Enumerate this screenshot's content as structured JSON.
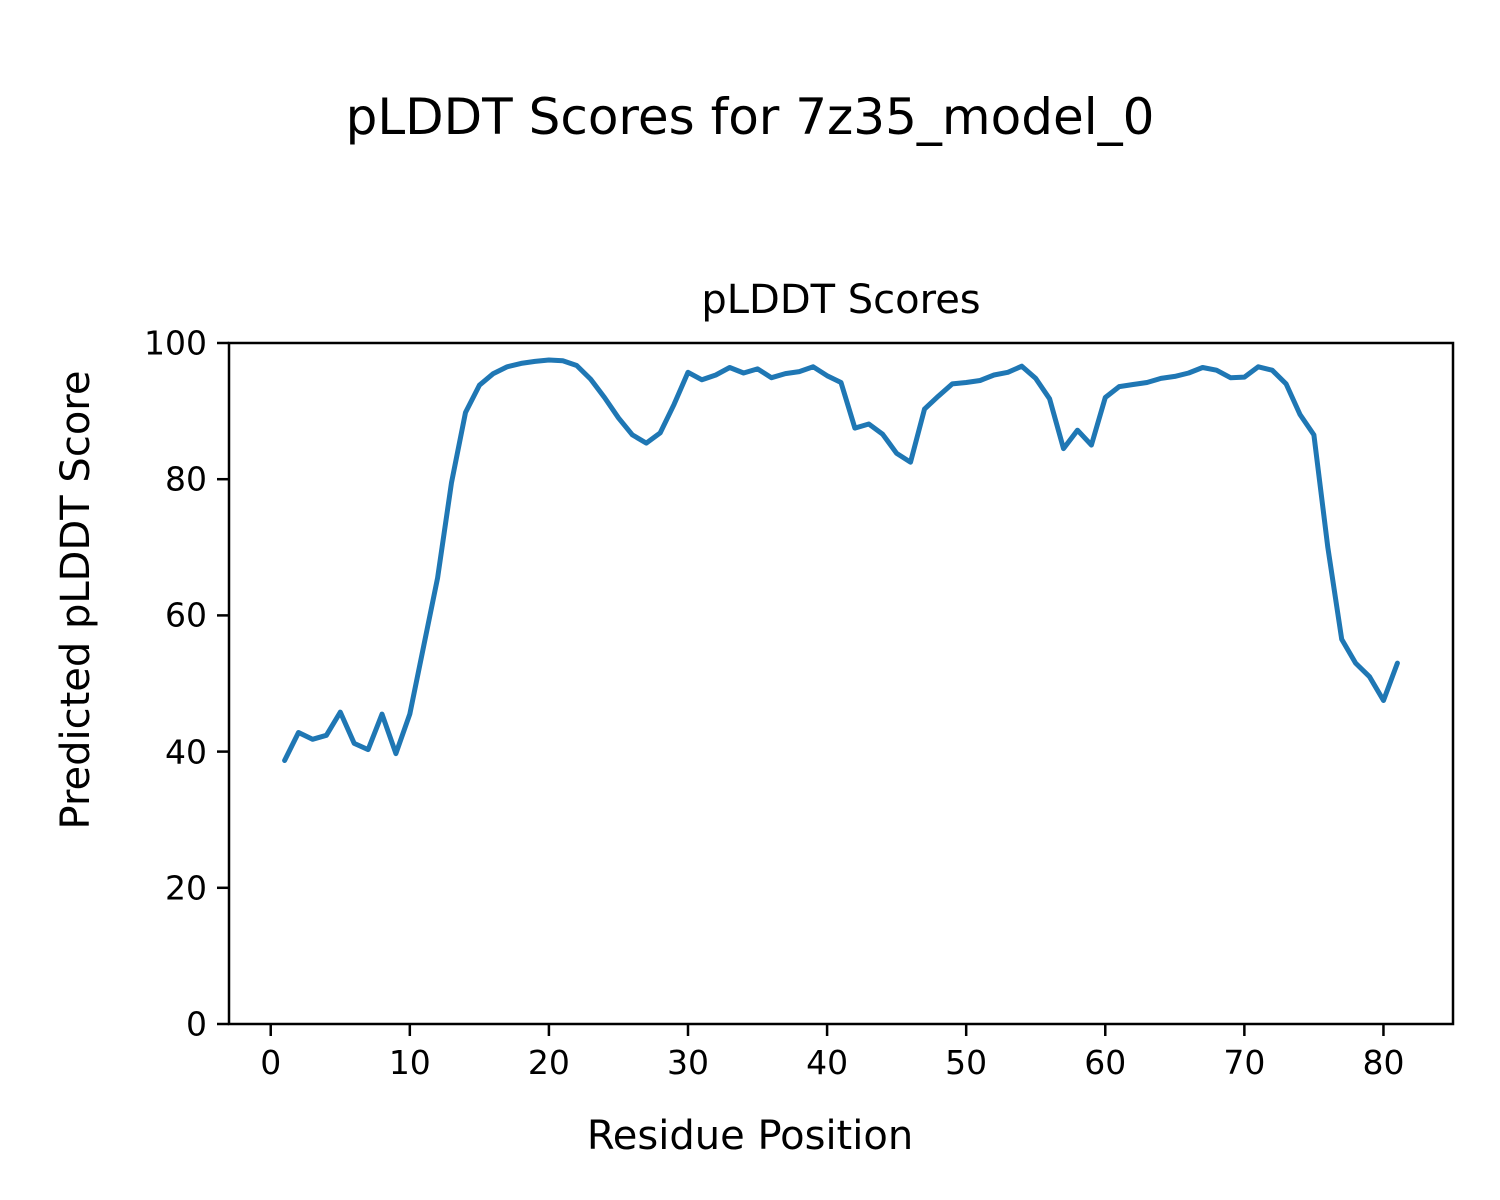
{
  "header": {
    "title": "pLDDT Scores for 7z35_model_0"
  },
  "chart_data": {
    "type": "line",
    "title": "pLDDT Scores",
    "xlabel": "Residue Position",
    "ylabel": "Predicted pLDDT Score",
    "line_color": "#1f77b4",
    "grid": false,
    "legend": "none",
    "xlim": [
      -3,
      85
    ],
    "ylim": [
      0,
      100
    ],
    "x_ticks": [
      0,
      10,
      20,
      30,
      40,
      50,
      60,
      70,
      80
    ],
    "y_ticks": [
      0,
      20,
      40,
      60,
      80,
      100
    ],
    "series_name": "pLDDT",
    "x": [
      1,
      2,
      3,
      4,
      5,
      6,
      7,
      8,
      9,
      10,
      11,
      12,
      13,
      14,
      15,
      16,
      17,
      18,
      19,
      20,
      21,
      22,
      23,
      24,
      25,
      26,
      27,
      28,
      29,
      30,
      31,
      32,
      33,
      34,
      35,
      36,
      37,
      38,
      39,
      40,
      41,
      42,
      43,
      44,
      45,
      46,
      47,
      48,
      49,
      50,
      51,
      52,
      53,
      54,
      55,
      56,
      57,
      58,
      59,
      60,
      61,
      62,
      63,
      64,
      65,
      66,
      67,
      68,
      69,
      70,
      71,
      72,
      73,
      74,
      75,
      76,
      77,
      78,
      79,
      80,
      81
    ],
    "y": [
      38.7,
      42.8,
      41.8,
      42.4,
      45.8,
      41.2,
      40.3,
      45.5,
      39.7,
      45.5,
      55.5,
      65.5,
      79.5,
      89.8,
      93.8,
      95.5,
      96.5,
      97.0,
      97.3,
      97.5,
      97.4,
      96.7,
      94.7,
      92.0,
      89.0,
      86.5,
      85.3,
      86.8,
      91.0,
      95.7,
      94.6,
      95.3,
      96.4,
      95.6,
      96.2,
      94.9,
      95.5,
      95.8,
      96.5,
      95.2,
      94.2,
      87.5,
      88.1,
      86.6,
      83.8,
      82.5,
      90.3,
      92.2,
      94.0,
      94.2,
      94.5,
      95.3,
      95.7,
      96.6,
      94.8,
      91.8,
      84.5,
      87.2,
      85.0,
      92.0,
      93.6,
      93.9,
      94.2,
      94.8,
      95.1,
      95.6,
      96.4,
      96.0,
      94.9,
      95.0,
      96.5,
      96.0,
      94.0,
      89.5,
      86.5,
      70.0,
      56.5,
      53.0,
      51.0,
      47.5,
      53.0
    ]
  }
}
